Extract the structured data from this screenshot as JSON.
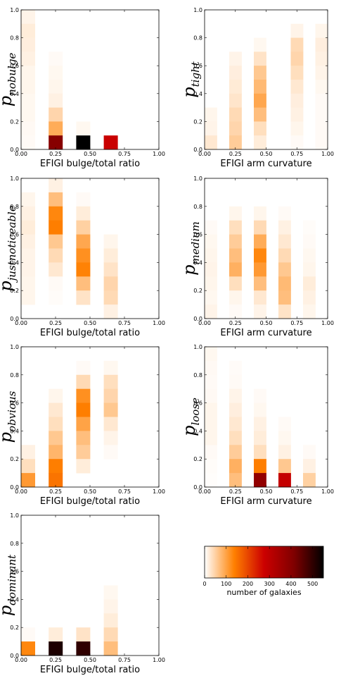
{
  "chart_data": [
    {
      "type": "heatmap",
      "ylabel_main": "p",
      "ylabel_sub": "nobulge",
      "xlabel": "EFIGI bulge/total ratio",
      "xticks": [
        "0.00",
        "0.25",
        "0.50",
        "0.75",
        "1.00"
      ],
      "yticks": [
        "0.0",
        "0.2",
        "0.4",
        "0.6",
        "0.8",
        "1.0"
      ],
      "xlim": [
        0,
        1
      ],
      "ylim": [
        0,
        1
      ],
      "bins_x": 10,
      "bins_y": 10,
      "counts": [
        [
          12,
          0,
          0,
          0,
          0,
          0,
          0,
          0,
          0,
          0
        ],
        [
          20,
          0,
          0,
          0,
          0,
          0,
          0,
          0,
          0,
          0
        ],
        [
          18,
          0,
          0,
          0,
          0,
          0,
          0,
          0,
          0,
          0
        ],
        [
          15,
          0,
          5,
          0,
          0,
          0,
          0,
          0,
          0,
          0
        ],
        [
          10,
          0,
          8,
          0,
          0,
          0,
          0,
          0,
          0,
          0
        ],
        [
          10,
          0,
          10,
          0,
          0,
          0,
          0,
          0,
          0,
          0
        ],
        [
          8,
          0,
          15,
          0,
          0,
          0,
          0,
          0,
          0,
          0
        ],
        [
          8,
          0,
          45,
          0,
          0,
          0,
          0,
          0,
          0,
          0
        ],
        [
          6,
          0,
          90,
          0,
          8,
          0,
          0,
          0,
          0,
          0
        ],
        [
          5,
          0,
          400,
          0,
          550,
          0,
          280,
          0,
          0,
          0
        ]
      ]
    },
    {
      "type": "heatmap",
      "ylabel_main": "p",
      "ylabel_sub": "tight",
      "xlabel": "EFIGI arm curvature",
      "xticks": [
        "0.00",
        "0.25",
        "0.50",
        "0.75",
        "1.00"
      ],
      "yticks": [
        "0.0",
        "0.2",
        "0.4",
        "0.6",
        "0.8",
        "1.0"
      ],
      "xlim": [
        0,
        1
      ],
      "ylim": [
        0,
        1
      ],
      "bins_x": 10,
      "bins_y": 10,
      "counts": [
        [
          0,
          0,
          0,
          0,
          0,
          0,
          0,
          0,
          0,
          0
        ],
        [
          0,
          0,
          0,
          0,
          0,
          0,
          0,
          12,
          0,
          10
        ],
        [
          0,
          0,
          0,
          0,
          8,
          0,
          0,
          40,
          0,
          18
        ],
        [
          0,
          0,
          12,
          0,
          30,
          0,
          0,
          45,
          0,
          15
        ],
        [
          0,
          0,
          18,
          0,
          60,
          0,
          0,
          35,
          0,
          12
        ],
        [
          0,
          0,
          22,
          0,
          75,
          0,
          0,
          25,
          0,
          8
        ],
        [
          0,
          0,
          28,
          0,
          95,
          0,
          0,
          18,
          0,
          5
        ],
        [
          10,
          0,
          40,
          0,
          70,
          0,
          0,
          15,
          0,
          5
        ],
        [
          12,
          0,
          45,
          0,
          35,
          0,
          0,
          10,
          0,
          5
        ],
        [
          25,
          0,
          55,
          0,
          20,
          0,
          0,
          5,
          0,
          5
        ]
      ]
    },
    {
      "type": "heatmap",
      "ylabel_main": "p",
      "ylabel_sub": "justnoticeable",
      "xlabel": "EFIGI bulge/total ratio",
      "xticks": [
        "0.00",
        "0.25",
        "0.50",
        "0.75",
        "1.00"
      ],
      "yticks": [
        "0.0",
        "0.2",
        "0.4",
        "0.6",
        "0.8",
        "1.0"
      ],
      "xlim": [
        0,
        1
      ],
      "ylim": [
        0,
        1
      ],
      "bins_x": 10,
      "bins_y": 10,
      "counts": [
        [
          0,
          0,
          15,
          0,
          0,
          0,
          0,
          0,
          0,
          0
        ],
        [
          10,
          0,
          70,
          0,
          5,
          0,
          0,
          0,
          0,
          0
        ],
        [
          15,
          0,
          130,
          0,
          20,
          0,
          0,
          0,
          0,
          0
        ],
        [
          20,
          0,
          140,
          0,
          50,
          0,
          0,
          0,
          0,
          0
        ],
        [
          15,
          0,
          60,
          0,
          95,
          0,
          10,
          0,
          0,
          0
        ],
        [
          12,
          0,
          40,
          0,
          120,
          0,
          20,
          0,
          0,
          0
        ],
        [
          12,
          0,
          25,
          0,
          135,
          0,
          30,
          0,
          0,
          0
        ],
        [
          10,
          0,
          5,
          0,
          70,
          0,
          45,
          0,
          0,
          0
        ],
        [
          10,
          0,
          3,
          0,
          30,
          0,
          40,
          0,
          0,
          0
        ],
        [
          0,
          0,
          0,
          0,
          0,
          0,
          15,
          0,
          0,
          0
        ]
      ]
    },
    {
      "type": "heatmap",
      "ylabel_main": "p",
      "ylabel_sub": "medium",
      "xlabel": "EFIGI arm curvature",
      "xticks": [
        "0.00",
        "0.25",
        "0.50",
        "0.75",
        "1.00"
      ],
      "yticks": [
        "0.0",
        "0.2",
        "0.4",
        "0.6",
        "0.8",
        "1.0"
      ],
      "xlim": [
        0,
        1
      ],
      "ylim": [
        0,
        1
      ],
      "bins_x": 10,
      "bins_y": 10,
      "counts": [
        [
          0,
          0,
          0,
          0,
          0,
          0,
          0,
          0,
          0,
          0
        ],
        [
          0,
          0,
          0,
          0,
          0,
          0,
          0,
          0,
          0,
          0
        ],
        [
          0,
          0,
          10,
          0,
          10,
          0,
          5,
          0,
          0,
          0
        ],
        [
          5,
          0,
          35,
          0,
          40,
          0,
          15,
          0,
          3,
          0
        ],
        [
          8,
          0,
          55,
          0,
          90,
          0,
          25,
          0,
          5,
          0
        ],
        [
          10,
          0,
          70,
          0,
          130,
          0,
          40,
          0,
          8,
          0
        ],
        [
          12,
          0,
          85,
          0,
          110,
          0,
          60,
          0,
          10,
          0
        ],
        [
          10,
          0,
          35,
          0,
          70,
          0,
          75,
          0,
          20,
          0
        ],
        [
          8,
          0,
          10,
          0,
          25,
          0,
          70,
          0,
          15,
          0
        ],
        [
          12,
          0,
          5,
          0,
          12,
          0,
          30,
          0,
          10,
          0
        ]
      ]
    },
    {
      "type": "heatmap",
      "ylabel_main": "p",
      "ylabel_sub": "obvious",
      "xlabel": "EFIGI bulge/total ratio",
      "xticks": [
        "0.00",
        "0.25",
        "0.50",
        "0.75",
        "1.00"
      ],
      "yticks": [
        "0.0",
        "0.2",
        "0.4",
        "0.6",
        "0.8",
        "1.0"
      ],
      "xlim": [
        0,
        1
      ],
      "ylim": [
        0,
        1
      ],
      "bins_x": 10,
      "bins_y": 10,
      "counts": [
        [
          0,
          0,
          0,
          0,
          0,
          0,
          0,
          0,
          0,
          0
        ],
        [
          0,
          0,
          0,
          0,
          5,
          0,
          8,
          0,
          0,
          0
        ],
        [
          0,
          0,
          0,
          0,
          40,
          0,
          35,
          0,
          0,
          0
        ],
        [
          0,
          0,
          10,
          0,
          120,
          0,
          45,
          0,
          0,
          0
        ],
        [
          0,
          0,
          25,
          0,
          140,
          0,
          60,
          0,
          0,
          0
        ],
        [
          0,
          0,
          35,
          0,
          100,
          0,
          25,
          0,
          0,
          0
        ],
        [
          0,
          0,
          60,
          0,
          70,
          0,
          12,
          0,
          0,
          0
        ],
        [
          15,
          0,
          80,
          0,
          55,
          0,
          5,
          0,
          0,
          0
        ],
        [
          35,
          0,
          140,
          0,
          20,
          0,
          0,
          0,
          0,
          0
        ],
        [
          110,
          0,
          150,
          0,
          0,
          0,
          0,
          0,
          0,
          0
        ]
      ]
    },
    {
      "type": "heatmap",
      "ylabel_main": "p",
      "ylabel_sub": "loose",
      "xlabel": "EFIGI arm curvature",
      "xticks": [
        "0.00",
        "0.25",
        "0.50",
        "0.75",
        "1.00"
      ],
      "yticks": [
        "0.0",
        "0.2",
        "0.4",
        "0.6",
        "0.8",
        "1.0"
      ],
      "xlim": [
        0,
        1
      ],
      "ylim": [
        0,
        1
      ],
      "bins_x": 10,
      "bins_y": 10,
      "counts": [
        [
          8,
          0,
          0,
          0,
          0,
          0,
          0,
          0,
          0,
          0
        ],
        [
          6,
          0,
          4,
          0,
          0,
          0,
          0,
          0,
          0,
          0
        ],
        [
          5,
          0,
          5,
          0,
          0,
          0,
          0,
          0,
          0,
          0
        ],
        [
          6,
          0,
          12,
          0,
          5,
          0,
          0,
          0,
          0,
          0
        ],
        [
          10,
          0,
          18,
          0,
          8,
          0,
          0,
          0,
          0,
          0
        ],
        [
          10,
          0,
          25,
          0,
          15,
          0,
          5,
          0,
          0,
          0
        ],
        [
          10,
          0,
          35,
          0,
          20,
          0,
          8,
          0,
          0,
          0
        ],
        [
          5,
          0,
          55,
          0,
          35,
          0,
          15,
          0,
          5,
          0
        ],
        [
          3,
          0,
          85,
          0,
          140,
          0,
          60,
          0,
          15,
          0
        ],
        [
          2,
          0,
          70,
          0,
          380,
          0,
          290,
          0,
          50,
          0
        ]
      ]
    },
    {
      "type": "heatmap",
      "ylabel_main": "p",
      "ylabel_sub": "dominant",
      "xlabel": "EFIGI bulge/total ratio",
      "xticks": [
        "0.00",
        "0.25",
        "0.50",
        "0.75",
        "1.00"
      ],
      "yticks": [
        "0.0",
        "0.2",
        "0.4",
        "0.6",
        "0.8",
        "1.0"
      ],
      "xlim": [
        0,
        1
      ],
      "ylim": [
        0,
        1
      ],
      "bins_x": 10,
      "bins_y": 10,
      "counts": [
        [
          0,
          0,
          0,
          0,
          0,
          0,
          0,
          0,
          0,
          0
        ],
        [
          0,
          0,
          0,
          0,
          0,
          0,
          0,
          0,
          0,
          0
        ],
        [
          0,
          0,
          0,
          0,
          0,
          0,
          0,
          0,
          0,
          0
        ],
        [
          0,
          0,
          0,
          0,
          0,
          0,
          0,
          0,
          0,
          0
        ],
        [
          0,
          0,
          0,
          0,
          0,
          0,
          0,
          0,
          0,
          0
        ],
        [
          0,
          0,
          0,
          0,
          0,
          0,
          8,
          0,
          0,
          0
        ],
        [
          0,
          0,
          0,
          0,
          0,
          0,
          12,
          0,
          0,
          0
        ],
        [
          0,
          0,
          0,
          0,
          0,
          0,
          20,
          0,
          0,
          0
        ],
        [
          5,
          0,
          20,
          0,
          30,
          0,
          40,
          0,
          0,
          0
        ],
        [
          130,
          0,
          520,
          0,
          500,
          0,
          70,
          0,
          0,
          0
        ]
      ]
    }
  ],
  "colorbar": {
    "range": [
      0,
      550
    ],
    "ticks": [
      "0",
      "100",
      "200",
      "300",
      "400",
      "500"
    ],
    "tick_values": [
      0,
      100,
      200,
      300,
      400,
      500
    ],
    "label": "number of galaxies",
    "colormap": "gist_heat_r",
    "colors": [
      "#ffffff",
      "#ff8000",
      "#cc0000",
      "#800000",
      "#000000"
    ]
  }
}
